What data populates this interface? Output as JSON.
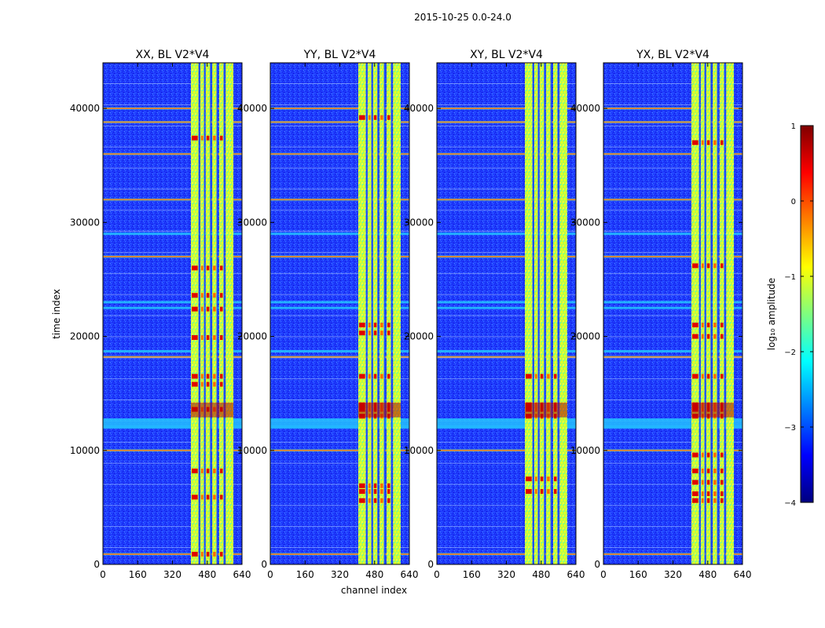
{
  "chart_data": {
    "type": "heatmap",
    "suptitle": "2015-10-25 0.0-24.0",
    "xlabel": "channel index",
    "ylabel": "time index",
    "xlim": [
      0,
      640
    ],
    "ylim": [
      0,
      44000
    ],
    "xticks": [
      "0",
      "160",
      "320",
      "480",
      "640"
    ],
    "yticks": [
      "0",
      "10000",
      "20000",
      "30000",
      "40000"
    ],
    "xtick_values": [
      0,
      160,
      320,
      480,
      640
    ],
    "ytick_values": [
      0,
      10000,
      20000,
      30000,
      40000
    ],
    "panels": [
      {
        "title": "XX, BL V2*V4",
        "hot_rows": [
          900,
          5900,
          8200,
          13600,
          15800,
          16500,
          19900,
          22400,
          23600,
          26000,
          37400
        ],
        "flag_rows": [
          900,
          10000,
          12100,
          12700,
          18200,
          18700,
          22500,
          23000,
          27000,
          29000,
          32000,
          36000,
          38800,
          40000
        ]
      },
      {
        "title": "YY, BL V2*V4",
        "hot_rows": [
          5600,
          6400,
          6900,
          13000,
          13600,
          14000,
          16500,
          20300,
          21000,
          39200
        ],
        "flag_rows": [
          900,
          10000,
          12100,
          12700,
          18200,
          18700,
          22500,
          23000,
          27000,
          29000,
          32000,
          36000,
          38800,
          40000
        ]
      },
      {
        "title": "XY, BL V2*V4",
        "hot_rows": [
          6400,
          7500,
          13000,
          13600,
          14000,
          16500
        ],
        "flag_rows": [
          900,
          10000,
          12100,
          12700,
          18200,
          18700,
          22500,
          23000,
          27000,
          29000,
          32000,
          36000,
          38800,
          40000
        ]
      },
      {
        "title": "YX, BL V2*V4",
        "hot_rows": [
          5600,
          6200,
          7200,
          8200,
          9600,
          13000,
          13600,
          14000,
          16500,
          20000,
          21000,
          26200,
          37000
        ],
        "flag_rows": [
          900,
          10000,
          12100,
          12700,
          18200,
          18700,
          22500,
          23000,
          27000,
          29000,
          32000,
          36000,
          38800,
          40000
        ]
      }
    ],
    "rfi_bands": [
      {
        "start": 405,
        "end": 440
      },
      {
        "start": 448,
        "end": 465
      },
      {
        "start": 473,
        "end": 493
      },
      {
        "start": 503,
        "end": 523
      },
      {
        "start": 535,
        "end": 555
      },
      {
        "start": 565,
        "end": 600
      }
    ],
    "colorbar": {
      "label": "log₁₀ amplitude",
      "min": -4,
      "max": 1,
      "ticks": [
        "1",
        "0",
        "−1",
        "−2",
        "−3",
        "−4"
      ],
      "tick_values": [
        1,
        0,
        -1,
        -2,
        -3,
        -4
      ],
      "colormap": "jet",
      "colors": [
        "#00007f",
        "#0000ff",
        "#007fff",
        "#00ffff",
        "#7fff7f",
        "#ffff00",
        "#ff7f00",
        "#ff0000",
        "#7f0000"
      ]
    }
  }
}
